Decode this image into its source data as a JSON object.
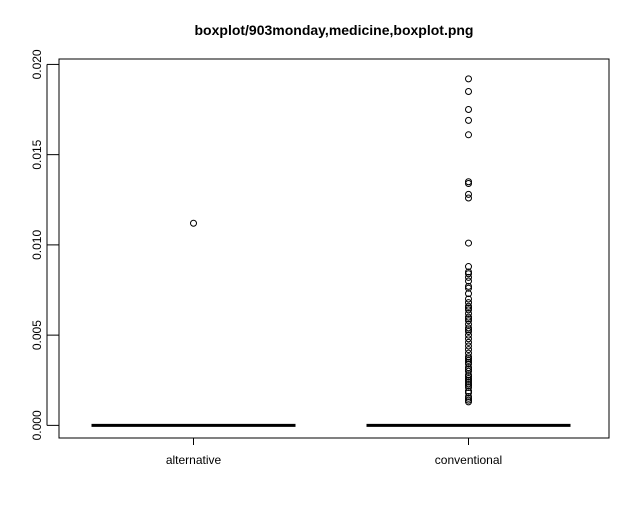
{
  "chart_data": {
    "type": "boxplot",
    "title": "boxplot/903monday,medicine,boxplot.png",
    "xlabel": "",
    "ylabel": "",
    "ylim": [
      -0.0007,
      0.0203
    ],
    "yticks": [
      0.0,
      0.005,
      0.01,
      0.015,
      0.02
    ],
    "ytick_labels": [
      "0.000",
      "0.005",
      "0.010",
      "0.015",
      "0.020"
    ],
    "categories": [
      "alternative",
      "conventional"
    ],
    "boxes": [
      {
        "category": "alternative",
        "min": 0.0,
        "q1": 0.0,
        "median": 0.0,
        "q3": 0.0,
        "max": 0.0,
        "outliers": [
          0.0112
        ]
      },
      {
        "category": "conventional",
        "min": 0.0,
        "q1": 0.0,
        "median": 0.0,
        "q3": 0.0,
        "max": 0.0,
        "outliers": [
          0.0192,
          0.0185,
          0.0175,
          0.0169,
          0.0161,
          0.0135,
          0.0134,
          0.0128,
          0.0126,
          0.0101,
          0.0088,
          0.0085,
          0.0084,
          0.0082,
          0.008,
          0.0077,
          0.0076,
          0.0073,
          0.007,
          0.0068,
          0.0066,
          0.0065,
          0.0064,
          0.0062,
          0.006,
          0.0059,
          0.0058,
          0.0056,
          0.0054,
          0.0053,
          0.0052,
          0.005,
          0.0048,
          0.0046,
          0.0044,
          0.0042,
          0.004,
          0.0038,
          0.0037,
          0.0036,
          0.0035,
          0.0034,
          0.0032,
          0.0031,
          0.003,
          0.0028,
          0.0027,
          0.0026,
          0.0025,
          0.0024,
          0.0023,
          0.0022,
          0.0021,
          0.0019,
          0.0018,
          0.0016,
          0.0015,
          0.0014,
          0.0013
        ]
      }
    ],
    "grid": false,
    "colors": {
      "box": "#000000",
      "outlier": "#000000",
      "axis": "#000000"
    }
  }
}
